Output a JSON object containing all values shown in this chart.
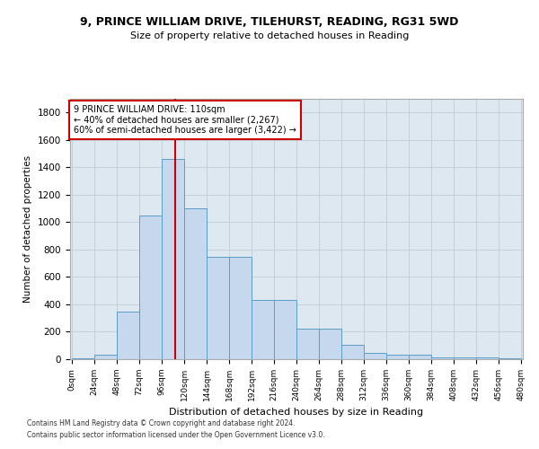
{
  "title1": "9, PRINCE WILLIAM DRIVE, TILEHURST, READING, RG31 5WD",
  "title2": "Size of property relative to detached houses in Reading",
  "xlabel": "Distribution of detached houses by size in Reading",
  "ylabel": "Number of detached properties",
  "bar_color": "#c5d8ed",
  "bar_edge_color": "#5b9dc9",
  "background_color": "#ffffff",
  "grid_color": "#c0ccd8",
  "annotation_box_color": "#ffffff",
  "annotation_border_color": "#cc0000",
  "vline_color": "#cc0000",
  "bin_edges": [
    0,
    24,
    48,
    72,
    96,
    120,
    144,
    168,
    192,
    216,
    240,
    264,
    288,
    312,
    336,
    360,
    384,
    408,
    432,
    456,
    480
  ],
  "bar_heights": [
    5,
    30,
    350,
    1050,
    1460,
    1100,
    750,
    750,
    430,
    430,
    220,
    220,
    105,
    45,
    30,
    30,
    15,
    15,
    10,
    5
  ],
  "tick_labels": [
    "0sqm",
    "24sqm",
    "48sqm",
    "72sqm",
    "96sqm",
    "120sqm",
    "144sqm",
    "168sqm",
    "192sqm",
    "216sqm",
    "240sqm",
    "264sqm",
    "288sqm",
    "312sqm",
    "336sqm",
    "360sqm",
    "384sqm",
    "408sqm",
    "432sqm",
    "456sqm",
    "480sqm"
  ],
  "ylim": [
    0,
    1900
  ],
  "yticks": [
    0,
    200,
    400,
    600,
    800,
    1000,
    1200,
    1400,
    1600,
    1800
  ],
  "property_size": 110,
  "annotation_line1": "9 PRINCE WILLIAM DRIVE: 110sqm",
  "annotation_line2": "← 40% of detached houses are smaller (2,267)",
  "annotation_line3": "60% of semi-detached houses are larger (3,422) →",
  "footnote1": "Contains HM Land Registry data © Crown copyright and database right 2024.",
  "footnote2": "Contains public sector information licensed under the Open Government Licence v3.0."
}
